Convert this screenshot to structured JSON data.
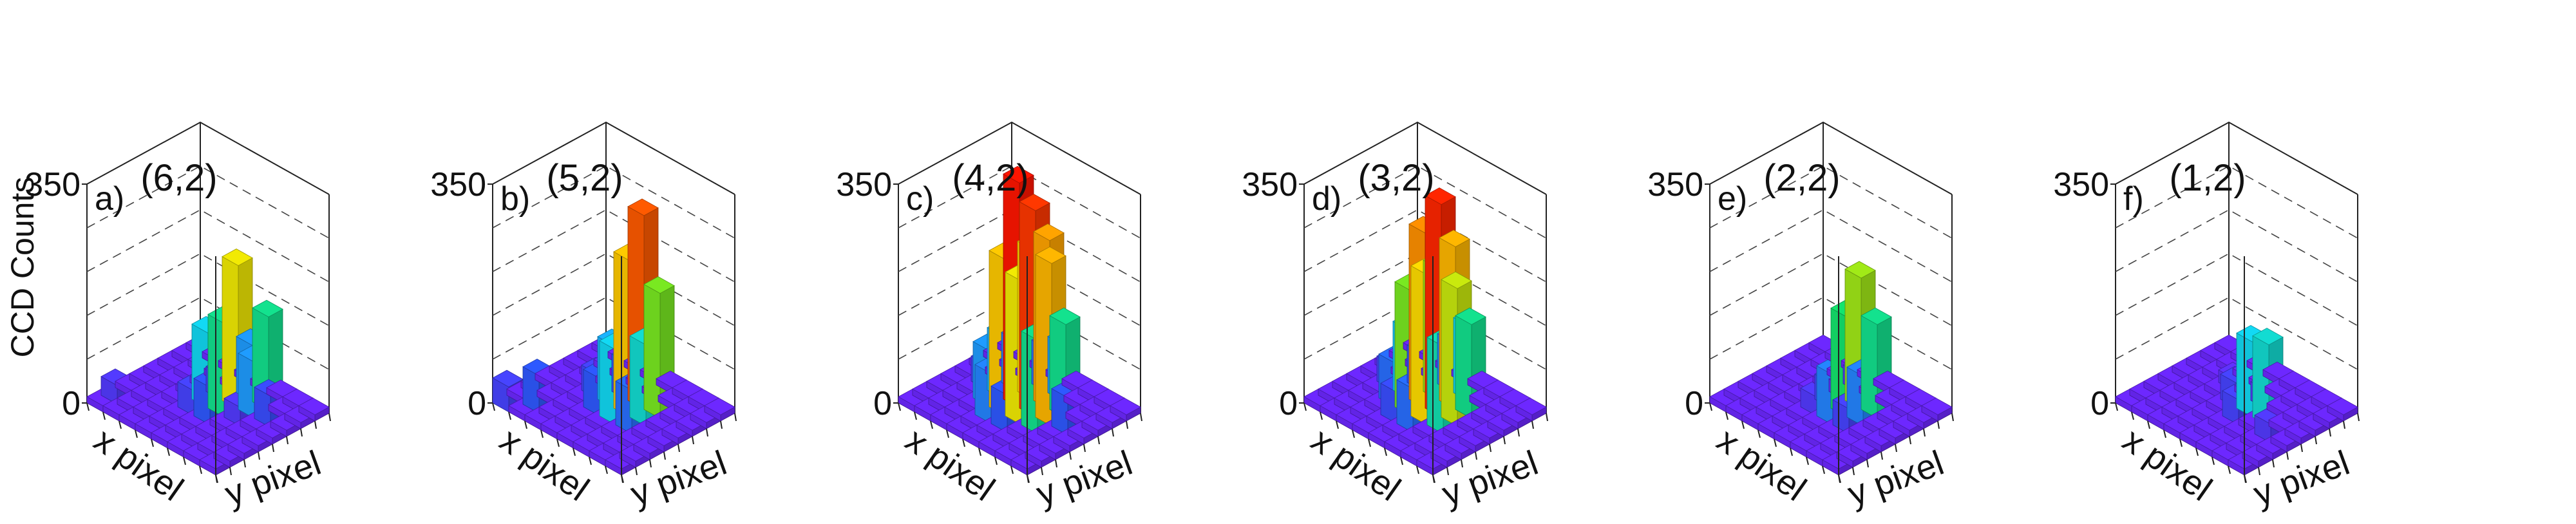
{
  "chart_data": {
    "type": "lego-3d-histogram",
    "ylabel": "CCD Counts",
    "zlim": [
      0,
      350
    ],
    "z_tick_labels": [
      "0",
      "350"
    ],
    "xlabel": "x pixel",
    "y_axis_label": "y pixel",
    "colormap": [
      "#7a1fff",
      "#2f55ff",
      "#12d8ff",
      "#14e93a",
      "#ffea00",
      "#ff7a00",
      "#ff1500"
    ],
    "panels": [
      {
        "letter": "a)",
        "title": "(6,2)",
        "grid": [
          [
            10,
            10,
            10,
            10,
            10,
            10,
            10,
            10
          ],
          [
            10,
            10,
            10,
            10,
            10,
            50,
            10,
            10
          ],
          [
            10,
            10,
            10,
            10,
            30,
            90,
            150,
            10
          ],
          [
            10,
            10,
            10,
            60,
            150,
            230,
            90,
            10
          ],
          [
            10,
            10,
            10,
            40,
            120,
            40,
            10,
            10
          ],
          [
            10,
            10,
            10,
            10,
            10,
            10,
            10,
            10
          ],
          [
            10,
            10,
            10,
            10,
            10,
            10,
            10,
            10
          ],
          [
            10,
            30,
            10,
            10,
            10,
            10,
            10,
            10
          ]
        ]
      },
      {
        "letter": "b)",
        "title": "(5,2)",
        "grid": [
          [
            10,
            10,
            10,
            10,
            10,
            10,
            10,
            10
          ],
          [
            10,
            10,
            10,
            10,
            10,
            10,
            10,
            10
          ],
          [
            10,
            10,
            10,
            70,
            130,
            200,
            10,
            10
          ],
          [
            10,
            10,
            10,
            120,
            250,
            310,
            10,
            10
          ],
          [
            10,
            10,
            10,
            60,
            100,
            60,
            10,
            10
          ],
          [
            10,
            10,
            10,
            10,
            40,
            10,
            10,
            10
          ],
          [
            10,
            60,
            10,
            10,
            10,
            10,
            10,
            10
          ],
          [
            40,
            10,
            10,
            10,
            10,
            10,
            10,
            10
          ]
        ]
      },
      {
        "letter": "c)",
        "title": "(4,2)",
        "grid": [
          [
            10,
            10,
            10,
            10,
            10,
            10,
            10,
            10
          ],
          [
            10,
            10,
            10,
            10,
            60,
            10,
            10,
            10
          ],
          [
            10,
            10,
            10,
            150,
            260,
            150,
            10,
            10
          ],
          [
            10,
            10,
            60,
            230,
            330,
            270,
            90,
            10
          ],
          [
            10,
            10,
            80,
            250,
            360,
            240,
            70,
            10
          ],
          [
            10,
            10,
            10,
            90,
            100,
            80,
            10,
            10
          ],
          [
            10,
            10,
            10,
            10,
            40,
            10,
            10,
            10
          ],
          [
            10,
            10,
            10,
            10,
            10,
            10,
            10,
            10
          ]
        ]
      },
      {
        "letter": "d)",
        "title": "(3,2)",
        "grid": [
          [
            10,
            10,
            10,
            10,
            10,
            10,
            10,
            10
          ],
          [
            10,
            10,
            10,
            10,
            10,
            10,
            10,
            10
          ],
          [
            10,
            10,
            10,
            140,
            220,
            150,
            10,
            10
          ],
          [
            10,
            10,
            70,
            240,
            340,
            260,
            120,
            10
          ],
          [
            10,
            10,
            50,
            200,
            280,
            210,
            80,
            10
          ],
          [
            10,
            10,
            10,
            70,
            110,
            60,
            10,
            10
          ],
          [
            10,
            10,
            10,
            10,
            40,
            10,
            10,
            10
          ],
          [
            10,
            10,
            10,
            10,
            10,
            10,
            10,
            10
          ]
        ]
      },
      {
        "letter": "e)",
        "title": "(2,2)",
        "grid": [
          [
            10,
            10,
            10,
            10,
            10,
            10,
            10,
            10
          ],
          [
            10,
            10,
            10,
            10,
            10,
            10,
            10,
            10
          ],
          [
            10,
            10,
            10,
            40,
            80,
            150,
            10,
            10
          ],
          [
            10,
            10,
            10,
            80,
            160,
            210,
            10,
            10
          ],
          [
            10,
            10,
            10,
            30,
            40,
            20,
            30,
            10
          ],
          [
            10,
            10,
            10,
            10,
            10,
            10,
            10,
            10
          ],
          [
            10,
            10,
            10,
            10,
            10,
            10,
            10,
            10
          ],
          [
            10,
            10,
            10,
            10,
            10,
            10,
            10,
            10
          ]
        ]
      },
      {
        "letter": "f)",
        "title": "(1,2)",
        "grid": [
          [
            10,
            10,
            10,
            10,
            10,
            10,
            10,
            10
          ],
          [
            10,
            10,
            10,
            30,
            10,
            10,
            10,
            10
          ],
          [
            10,
            10,
            10,
            10,
            130,
            10,
            10,
            10
          ],
          [
            10,
            10,
            10,
            40,
            120,
            30,
            10,
            10
          ],
          [
            10,
            10,
            10,
            10,
            40,
            10,
            10,
            10
          ],
          [
            10,
            10,
            10,
            10,
            10,
            20,
            10,
            10
          ],
          [
            10,
            10,
            10,
            10,
            10,
            10,
            10,
            10
          ],
          [
            10,
            10,
            10,
            10,
            10,
            10,
            10,
            10
          ]
        ]
      }
    ]
  }
}
